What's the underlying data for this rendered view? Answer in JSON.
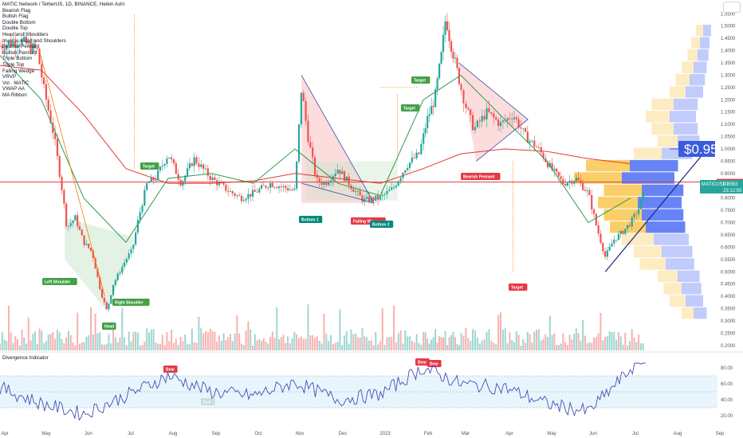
{
  "header": {
    "title": "MATIC Network / TetherUS, 1D, BINANCE, Heikin Ashi",
    "indicators": [
      "Bearish Flag",
      "Bullish Flag",
      "Double Bottom",
      "Double Top",
      "Head and Shoulders",
      "Inverse Head and Shoulders",
      "Bearish Pennant",
      "Bullish Pennant",
      "Triple Bottom",
      "Triple Top",
      "Falling Wedge",
      "VRVP",
      "Vol · MATIC",
      "VWAP AA",
      "MA Ribbon"
    ]
  },
  "oscillator": {
    "title": "Divergence Indicator"
  },
  "price_axis": {
    "ticks": [
      "1.5500",
      "1.5000",
      "1.4500",
      "1.4000",
      "1.3500",
      "1.3000",
      "1.2500",
      "1.2000",
      "1.1500",
      "1.1000",
      "1.0500",
      "1.0000",
      "0.9500",
      "0.9000",
      "0.8500",
      "0.8000",
      "0.7500",
      "0.7000",
      "0.6500",
      "0.6000",
      "0.5500",
      "0.5000",
      "0.4500",
      "0.4000",
      "0.3500",
      "0.3000",
      "0.2500",
      "0.2000"
    ],
    "current_symbol": "MATICUSDT",
    "current_price": "0.8563",
    "countdown": "23:12:50",
    "level_1": "0.8563",
    "level_2": "0.8563"
  },
  "osc_axis": {
    "ticks": [
      "80.00",
      "60.00",
      "40.00",
      "20.00"
    ]
  },
  "time_axis": {
    "labels": [
      "Apr",
      "May",
      "Jun",
      "Jul",
      "Aug",
      "Sep",
      "Oct",
      "Nov",
      "Dec",
      "2023",
      "Feb",
      "Mar",
      "Apr",
      "May",
      "Jun",
      "Jul",
      "Aug",
      "Sep"
    ]
  },
  "annotations": [
    {
      "text": "Target",
      "color": "#43a047"
    },
    {
      "text": "Left Shoulder",
      "color": "#43a047"
    },
    {
      "text": "Right Shoulder",
      "color": "#43a047"
    },
    {
      "text": "Head",
      "color": "#43a047"
    },
    {
      "text": "Bottom 1",
      "color": "#00897b"
    },
    {
      "text": "Falling We...",
      "color": "#e53946"
    },
    {
      "text": "Bottom 2",
      "color": "#00897b"
    },
    {
      "text": "Target",
      "color": "#43a047"
    },
    {
      "text": "Target",
      "color": "#43a047"
    },
    {
      "text": "Bearish Pennant",
      "color": "#e53946"
    },
    {
      "text": "Target",
      "color": "#e53946"
    },
    {
      "text": "Bear",
      "color": "#e53946"
    },
    {
      "text": "Bull",
      "color": "#43a047"
    },
    {
      "text": "Bear",
      "color": "#e53946"
    },
    {
      "text": "Bear",
      "color": "#e53946"
    }
  ],
  "callout_price": "$0.95",
  "colors": {
    "up": "#26a69a",
    "down": "#ef5350",
    "ma_red": "#e53935",
    "ma_green": "#2e9a4e",
    "vwap": "#3f51b5",
    "vrvp_up": "#f9c74f",
    "vrvp_down": "#4c6ef5"
  },
  "chart_data": {
    "type": "candlestick",
    "x": [
      "Apr",
      "May",
      "Jun",
      "Jul",
      "Aug",
      "Sep",
      "Oct",
      "Nov",
      "Dec",
      "2023",
      "Feb",
      "Mar",
      "Apr",
      "May",
      "Jun",
      "Jul"
    ],
    "close": [
      1.4,
      1.25,
      0.53,
      0.62,
      0.88,
      0.92,
      0.8,
      1.05,
      0.8,
      0.8,
      1.31,
      1.15,
      1.1,
      0.92,
      0.6,
      0.7
    ],
    "series": [
      {
        "values": [
          1.38,
          1.2,
          0.8,
          0.62,
          0.88,
          0.9,
          0.86,
          1.0,
          0.86,
          0.81,
          1.2,
          1.3,
          1.12,
          0.95,
          0.7,
          0.8
        ]
      },
      {
        "values": [
          1.34,
          1.32,
          1.14,
          0.92,
          0.86,
          0.86,
          0.87,
          0.9,
          0.88,
          0.86,
          0.92,
          0.98,
          1.0,
          0.99,
          0.96,
          0.94
        ]
      }
    ],
    "oscillator_values": [
      55,
      35,
      22,
      45,
      70,
      50,
      45,
      62,
      40,
      47,
      80,
      60,
      55,
      35,
      25,
      78
    ],
    "ylim": [
      0.18,
      1.58
    ]
  }
}
